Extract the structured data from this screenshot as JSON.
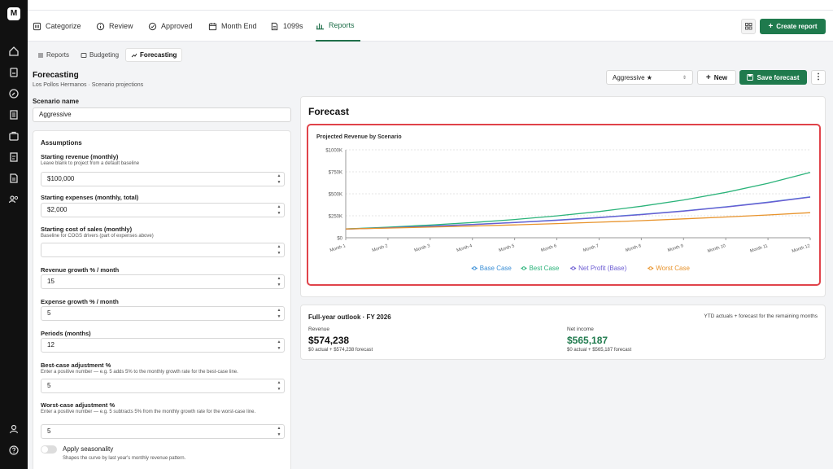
{
  "nav": {
    "tabs": [
      {
        "label": "Categorize",
        "icon": "categorize-icon"
      },
      {
        "label": "Review",
        "icon": "info-icon"
      },
      {
        "label": "Approved",
        "icon": "check-circle-icon"
      },
      {
        "label": "Month End",
        "icon": "calendar-icon"
      },
      {
        "label": "1099s",
        "icon": "document-icon"
      },
      {
        "label": "Reports",
        "icon": "bar-chart-icon",
        "active": true
      }
    ],
    "create_label": "Create report"
  },
  "subtabs": [
    {
      "label": "Reports"
    },
    {
      "label": "Budgeting"
    },
    {
      "label": "Forecasting",
      "active": true
    }
  ],
  "page": {
    "title": "Forecasting",
    "subtitle": "Los Pollos Hermanos · Scenario projections"
  },
  "actions": {
    "scenario_selected": "Aggressive ★",
    "new_label": "New",
    "save_label": "Save forecast"
  },
  "scenario": {
    "label": "Scenario name",
    "value": "Aggressive"
  },
  "assumptions": {
    "heading": "Assumptions",
    "fields": [
      {
        "label": "Starting revenue (monthly)",
        "hint": "Leave blank to project from a default baseline",
        "value": "$100,000"
      },
      {
        "label": "Starting expenses (monthly, total)",
        "hint": "",
        "value": "$2,000"
      },
      {
        "label": "Starting cost of sales (monthly)",
        "hint": "Baseline for COGS drivers (part of expenses above)",
        "value": ""
      },
      {
        "label": "Revenue growth % / month",
        "hint": "",
        "value": "15"
      },
      {
        "label": "Expense growth % / month",
        "hint": "",
        "value": "5"
      },
      {
        "label": "Periods (months)",
        "hint": "",
        "value": "12"
      },
      {
        "label": "Best-case adjustment %",
        "hint": "Enter a positive number — e.g. 5 adds 5% to the monthly growth rate for the best-case line.",
        "value": "5"
      },
      {
        "label": "Worst-case adjustment %",
        "hint": "Enter a positive number — e.g. 5 subtracts 5% from the monthly growth rate for the worst-case line.",
        "value": "5"
      }
    ],
    "seasonality_label": "Apply seasonality",
    "seasonality_hint": "Shapes the curve by last year's monthly revenue pattern.",
    "seasonality_on": false
  },
  "forecast_title": "Forecast",
  "chart_data": {
    "type": "line",
    "title": "Projected Revenue by Scenario",
    "x": [
      "Month 1",
      "Month 2",
      "Month 3",
      "Month 4",
      "Month 5",
      "Month 6",
      "Month 7",
      "Month 8",
      "Month 9",
      "Month 10",
      "Month 11",
      "Month 12"
    ],
    "yticks": [
      "$0",
      "$250K",
      "$500K",
      "$750K",
      "$1000K"
    ],
    "ylim": [
      0,
      1000000
    ],
    "grid": true,
    "legend": "bottom",
    "series": [
      {
        "name": "Base Case",
        "color": "#3b8fd6",
        "values": [
          100000,
          115000,
          132250,
          152088,
          174901,
          201136,
          231306,
          266002,
          305902,
          351788,
          404556,
          465239
        ]
      },
      {
        "name": "Best Case",
        "color": "#2bb37a",
        "values": [
          100000,
          120000,
          144000,
          172800,
          207360,
          248832,
          298598,
          358318,
          429982,
          515978,
          619174,
          743008
        ]
      },
      {
        "name": "Net Profit (Base)",
        "color": "#6b5bd2",
        "values": [
          98000,
          112900,
          130045,
          149773,
          172470,
          198583,
          228626,
          263187,
          302943,
          348675,
          401278,
          461775
        ]
      },
      {
        "name": "Worst Case",
        "color": "#e8932b",
        "values": [
          100000,
          110000,
          121000,
          133100,
          146410,
          161051,
          177156,
          194872,
          214359,
          235795,
          259374,
          285312
        ]
      }
    ]
  },
  "outlook": {
    "title": "Full-year outlook · FY 2026",
    "note": "YTD actuals + forecast for the remaining months",
    "revenue_label": "Revenue",
    "revenue_value": "$574,238",
    "revenue_detail": "$0 actual + $574,238 forecast",
    "income_label": "Net income",
    "income_value": "$565,187",
    "income_detail": "$0 actual + $565,187 forecast"
  },
  "colors": {
    "accent": "#1f7a4d",
    "highlight_border": "#e0434a"
  }
}
